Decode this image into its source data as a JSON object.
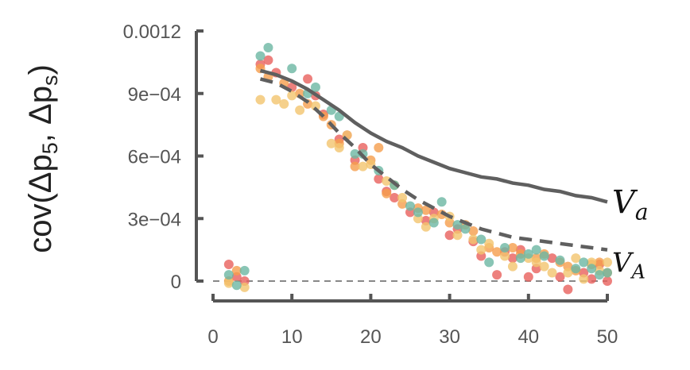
{
  "chart_data": {
    "type": "scatter",
    "title": "",
    "ylabel": "cov(Δp5,  Δps)",
    "ylabel_parts": {
      "prefix": "cov(Δp",
      "sub1": "5",
      "mid": ",  Δp",
      "sub2": "s",
      "suffix": ")"
    },
    "xlabel": "",
    "xlim": [
      0,
      50
    ],
    "ylim": [
      0,
      0.0012
    ],
    "x_ticks": [
      0,
      10,
      20,
      30,
      40,
      50
    ],
    "x_tick_labels": [
      "0",
      "10",
      "20",
      "30",
      "40",
      "50"
    ],
    "y_ticks": [
      0,
      0.0003,
      0.0006,
      0.0009,
      0.0012
    ],
    "y_tick_labels": [
      "0",
      "3e−04",
      "6e−04",
      "9e−04",
      "0.0012"
    ],
    "grid": false,
    "colors": {
      "axis": "#555555",
      "zero_line": "#888888",
      "curve": "#5f5f5f",
      "series": [
        "#e8605c",
        "#f59e4c",
        "#f2c46e",
        "#6cb6a2"
      ]
    },
    "series": [
      {
        "values": [
          [
            2,
            8e-05
          ],
          [
            3,
            2e-05
          ],
          [
            4,
            0.0
          ],
          [
            6,
            0.00104
          ],
          [
            7,
            0.00106
          ],
          [
            8,
            0.001
          ],
          [
            10,
            0.00093
          ],
          [
            12,
            0.00097
          ],
          [
            13,
            0.00089
          ],
          [
            14,
            0.0008
          ],
          [
            16,
            0.00068
          ],
          [
            17,
            0.0007
          ],
          [
            18,
            0.00058
          ],
          [
            19,
            0.00064
          ],
          [
            21,
            0.00049
          ],
          [
            22,
            0.00043
          ],
          [
            23,
            0.0004
          ],
          [
            25,
            0.00033
          ],
          [
            27,
            0.00029
          ],
          [
            28,
            0.00033
          ],
          [
            30,
            0.00022
          ],
          [
            31,
            0.00025
          ],
          [
            33,
            0.00019
          ],
          [
            34,
            0.00012
          ],
          [
            36,
            3e-05
          ],
          [
            37,
            0.00014
          ],
          [
            38,
            0.00011
          ],
          [
            39,
            0.00015
          ],
          [
            40,
            2e-05
          ],
          [
            41,
            6e-05
          ],
          [
            43,
            0.00011
          ],
          [
            44,
            2e-05
          ],
          [
            45,
            -4e-05
          ],
          [
            47,
            4e-05
          ],
          [
            48,
            1e-05
          ],
          [
            49,
            8e-05
          ],
          [
            50,
            0.0
          ]
        ]
      },
      {
        "values": [
          [
            2,
            0.0
          ],
          [
            3,
            5e-05
          ],
          [
            6,
            0.00102
          ],
          [
            7,
            0.00098
          ],
          [
            9,
            0.00095
          ],
          [
            11,
            0.0009
          ],
          [
            12,
            0.00085
          ],
          [
            14,
            0.00079
          ],
          [
            15,
            0.00075
          ],
          [
            16,
            0.00066
          ],
          [
            18,
            0.00055
          ],
          [
            20,
            0.00058
          ],
          [
            21,
            0.00064
          ],
          [
            22,
            0.00042
          ],
          [
            24,
            0.00037
          ],
          [
            26,
            0.00035
          ],
          [
            27,
            0.00034
          ],
          [
            29,
            0.00032
          ],
          [
            30,
            0.00028
          ],
          [
            32,
            0.00027
          ],
          [
            33,
            0.00024
          ],
          [
            35,
            0.00016
          ],
          [
            36,
            0.00014
          ],
          [
            38,
            0.00016
          ],
          [
            39,
            0.00013
          ],
          [
            41,
            0.00011
          ],
          [
            42,
            0.00013
          ],
          [
            44,
            9e-05
          ],
          [
            45,
            7e-05
          ],
          [
            46,
            5e-05
          ],
          [
            48,
            8e-05
          ],
          [
            49,
            9e-05
          ],
          [
            50,
            4e-05
          ]
        ]
      },
      {
        "values": [
          [
            2,
            -1e-05
          ],
          [
            4,
            -3e-05
          ],
          [
            6,
            0.00087
          ],
          [
            8,
            0.00087
          ],
          [
            9,
            0.00085
          ],
          [
            10,
            0.00089
          ],
          [
            11,
            0.00082
          ],
          [
            13,
            0.00084
          ],
          [
            15,
            0.00066
          ],
          [
            16,
            0.00064
          ],
          [
            17,
            0.0007
          ],
          [
            19,
            0.00055
          ],
          [
            20,
            0.00056
          ],
          [
            22,
            0.00048
          ],
          [
            23,
            0.00046
          ],
          [
            24,
            0.0004
          ],
          [
            26,
            0.0003
          ],
          [
            27,
            0.00026
          ],
          [
            28,
            0.0003
          ],
          [
            30,
            0.00031
          ],
          [
            31,
            0.00022
          ],
          [
            33,
            0.0002
          ],
          [
            34,
            0.00015
          ],
          [
            35,
            0.00018
          ],
          [
            37,
            0.00012
          ],
          [
            38,
            7e-05
          ],
          [
            40,
            0.00011
          ],
          [
            41,
            9e-05
          ],
          [
            42,
            7e-05
          ],
          [
            43,
            4e-05
          ],
          [
            45,
            4e-05
          ],
          [
            46,
            0.00011
          ],
          [
            47,
            1e-05
          ],
          [
            48,
            9e-05
          ],
          [
            49,
            5e-05
          ],
          [
            50,
            9e-05
          ]
        ]
      },
      {
        "values": [
          [
            2,
            3e-05
          ],
          [
            3,
            -2e-05
          ],
          [
            4,
            5e-05
          ],
          [
            6,
            0.00108
          ],
          [
            7,
            0.00112
          ],
          [
            10,
            0.00102
          ],
          [
            12,
            0.0009
          ],
          [
            13,
            0.00093
          ],
          [
            15,
            0.00082
          ],
          [
            16,
            0.00079
          ],
          [
            18,
            0.00061
          ],
          [
            19,
            0.00061
          ],
          [
            21,
            0.00053
          ],
          [
            23,
            0.00046
          ],
          [
            25,
            0.00036
          ],
          [
            26,
            0.00033
          ],
          [
            28,
            0.00028
          ],
          [
            29,
            0.00038
          ],
          [
            31,
            0.00027
          ],
          [
            32,
            0.00025
          ],
          [
            34,
            0.0002
          ],
          [
            35,
            9e-05
          ],
          [
            37,
            0.00016
          ],
          [
            39,
            0.00011
          ],
          [
            40,
            0.00013
          ],
          [
            41,
            0.00015
          ],
          [
            42,
            0.00012
          ],
          [
            44,
            0.0001
          ],
          [
            46,
            6e-05
          ],
          [
            47,
            9e-05
          ],
          [
            48,
            6e-05
          ],
          [
            49,
            3e-05
          ],
          [
            50,
            4e-05
          ]
        ]
      }
    ],
    "curves": [
      {
        "label": "Va",
        "label_main": "V",
        "label_sub": "a",
        "style": "solid",
        "points": [
          [
            6,
            0.00101
          ],
          [
            8,
            0.00099
          ],
          [
            10,
            0.00096
          ],
          [
            12,
            0.00092
          ],
          [
            14,
            0.00087
          ],
          [
            16,
            0.00082
          ],
          [
            18,
            0.00076
          ],
          [
            20,
            0.00071
          ],
          [
            22,
            0.00067
          ],
          [
            24,
            0.00064
          ],
          [
            26,
            0.0006
          ],
          [
            28,
            0.00057
          ],
          [
            30,
            0.00054
          ],
          [
            32,
            0.00052
          ],
          [
            34,
            0.0005
          ],
          [
            36,
            0.00049
          ],
          [
            38,
            0.00047
          ],
          [
            40,
            0.00046
          ],
          [
            42,
            0.00044
          ],
          [
            44,
            0.00043
          ],
          [
            46,
            0.00041
          ],
          [
            48,
            0.0004
          ],
          [
            50,
            0.00038
          ]
        ]
      },
      {
        "label": "VA",
        "label_main": "V",
        "label_sub": "A",
        "style": "dashed",
        "points": [
          [
            6,
            0.00097
          ],
          [
            8,
            0.00095
          ],
          [
            10,
            0.00091
          ],
          [
            12,
            0.00086
          ],
          [
            14,
            0.00079
          ],
          [
            16,
            0.00071
          ],
          [
            18,
            0.00064
          ],
          [
            20,
            0.00056
          ],
          [
            22,
            0.0005
          ],
          [
            24,
            0.00044
          ],
          [
            26,
            0.00039
          ],
          [
            28,
            0.00035
          ],
          [
            30,
            0.00031
          ],
          [
            32,
            0.00028
          ],
          [
            34,
            0.00025
          ],
          [
            36,
            0.00023
          ],
          [
            38,
            0.00021
          ],
          [
            40,
            0.0002
          ],
          [
            42,
            0.00019
          ],
          [
            44,
            0.00018
          ],
          [
            46,
            0.00017
          ],
          [
            48,
            0.00016
          ],
          [
            50,
            0.00015
          ]
        ]
      }
    ]
  }
}
